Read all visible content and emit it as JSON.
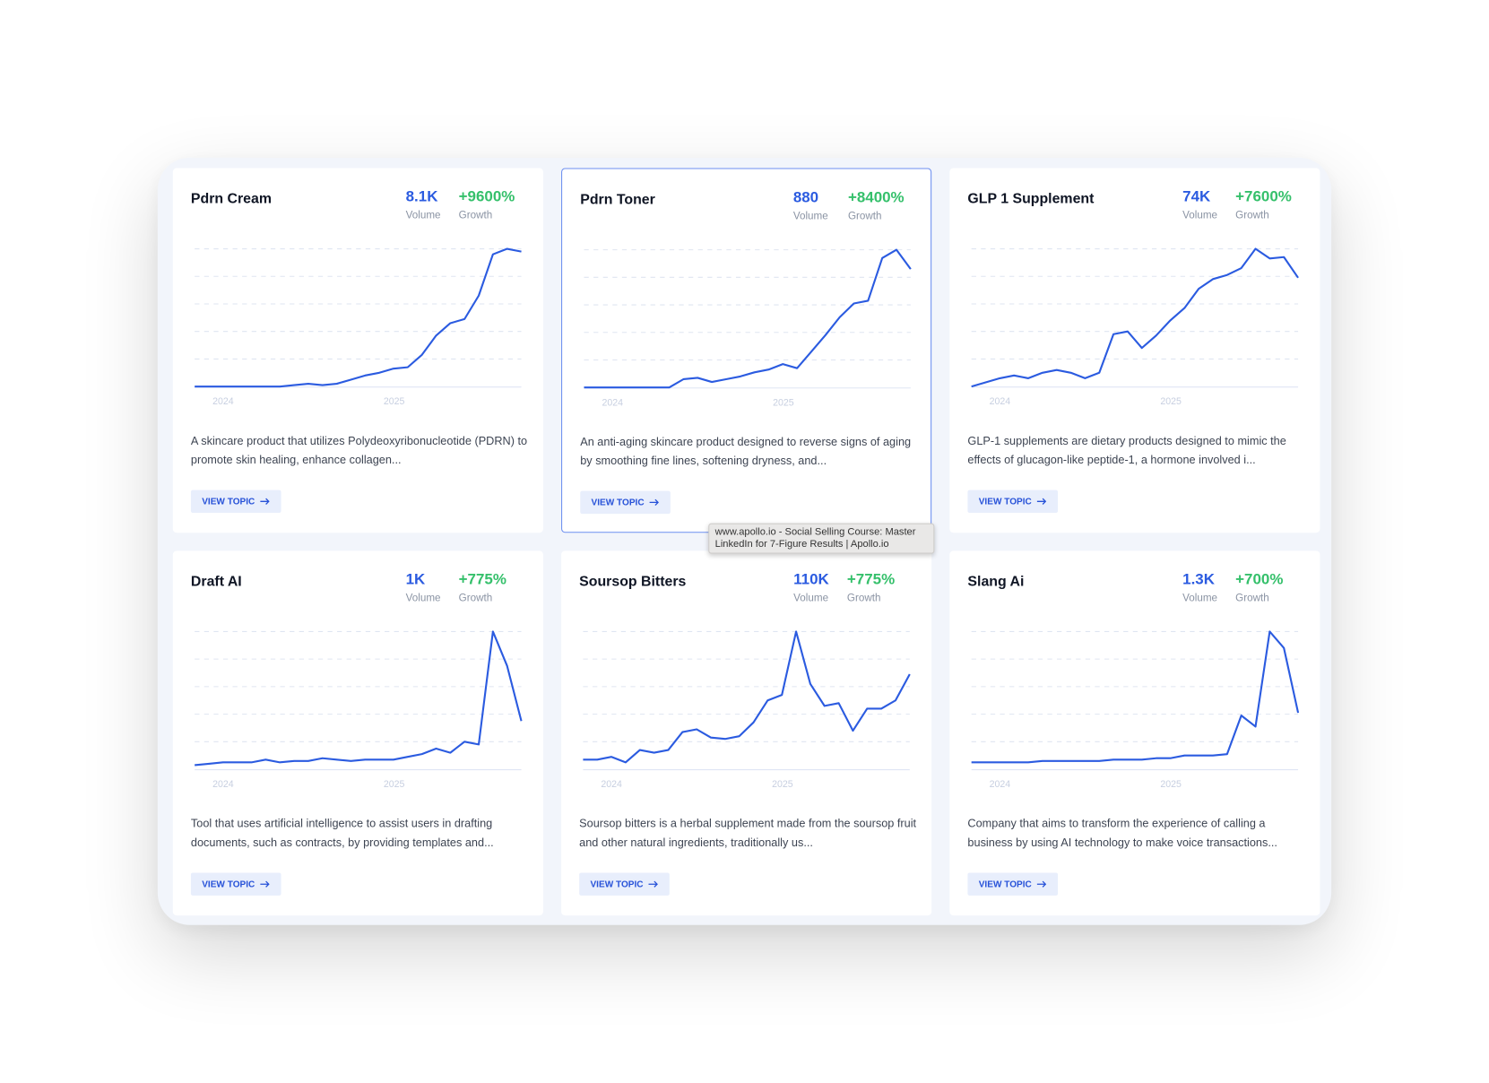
{
  "colors": {
    "line": "#2b5be0",
    "volume": "#2b5be0",
    "growth": "#35c06b"
  },
  "volume_label": "Volume",
  "growth_label": "Growth",
  "button_label": "VIEW TOPIC",
  "tooltip": "www.apollo.io - Social Selling Course: Master LinkedIn for 7-Figure Results | Apollo.io",
  "cards": [
    {
      "title": "Pdrn Cream",
      "volume": "8.1K",
      "growth": "+9600%",
      "description": "A skincare product that utilizes Polydeoxyribonucleotide (PDRN) to promote skin healing, enhance collagen..."
    },
    {
      "title": "Pdrn Toner",
      "volume": "880",
      "growth": "+8400%",
      "description": "An anti-aging skincare product designed to reverse signs of aging by smoothing fine lines, softening dryness, and..."
    },
    {
      "title": "GLP 1 Supplement",
      "volume": "74K",
      "growth": "+7600%",
      "description": "GLP-1 supplements are dietary products designed to mimic the effects of glucagon-like peptide-1, a hormone involved i..."
    },
    {
      "title": "Draft AI",
      "volume": "1K",
      "growth": "+775%",
      "description": "Tool that uses artificial intelligence to assist users in drafting documents, such as contracts, by providing templates and..."
    },
    {
      "title": "Soursop Bitters",
      "volume": "110K",
      "growth": "+775%",
      "description": "Soursop bitters is a herbal supplement made from the soursop fruit and other natural ingredients, traditionally us..."
    },
    {
      "title": "Slang Ai",
      "volume": "1.3K",
      "growth": "+700%",
      "description": "Company that aims to transform the experience of calling a business by using AI technology to make voice transactions..."
    }
  ],
  "chart_data": [
    {
      "type": "line",
      "title": "Pdrn Cream",
      "xticks": [
        "2024",
        "2025"
      ],
      "ylim": [
        0,
        100
      ],
      "values": [
        0,
        0,
        0,
        0,
        0,
        0,
        0,
        1,
        2,
        1,
        2,
        5,
        8,
        10,
        13,
        14,
        23,
        37,
        46,
        49,
        66,
        96,
        100,
        98
      ]
    },
    {
      "type": "line",
      "title": "Pdrn Toner",
      "xticks": [
        "2024",
        "2025"
      ],
      "ylim": [
        0,
        100
      ],
      "values": [
        0,
        0,
        0,
        0,
        0,
        0,
        0,
        6,
        7,
        4,
        6,
        8,
        11,
        13,
        17,
        14,
        26,
        38,
        51,
        61,
        63,
        94,
        100,
        86
      ]
    },
    {
      "type": "line",
      "title": "GLP 1 Supplement",
      "xticks": [
        "2024",
        "2025"
      ],
      "ylim": [
        0,
        100
      ],
      "values": [
        0,
        3,
        6,
        8,
        6,
        10,
        12,
        10,
        6,
        10,
        38,
        40,
        28,
        37,
        48,
        57,
        71,
        78,
        81,
        86,
        100,
        93,
        94,
        79
      ]
    },
    {
      "type": "line",
      "title": "Draft AI",
      "xticks": [
        "2024",
        "2025"
      ],
      "ylim": [
        0,
        100
      ],
      "values": [
        3,
        4,
        5,
        5,
        5,
        7,
        5,
        6,
        6,
        8,
        7,
        6,
        7,
        7,
        7,
        9,
        11,
        15,
        12,
        20,
        18,
        100,
        75,
        35
      ]
    },
    {
      "type": "line",
      "title": "Soursop Bitters",
      "xticks": [
        "2024",
        "2025"
      ],
      "ylim": [
        0,
        100
      ],
      "values": [
        7,
        7,
        9,
        5,
        14,
        12,
        14,
        27,
        29,
        23,
        22,
        24,
        34,
        50,
        54,
        100,
        62,
        46,
        48,
        28,
        44,
        44,
        50,
        69
      ]
    },
    {
      "type": "line",
      "title": "Slang Ai",
      "xticks": [
        "2024",
        "2025"
      ],
      "ylim": [
        0,
        100
      ],
      "values": [
        5,
        5,
        5,
        5,
        5,
        6,
        6,
        6,
        6,
        6,
        7,
        7,
        7,
        8,
        8,
        10,
        10,
        10,
        11,
        39,
        31,
        100,
        88,
        41
      ]
    }
  ]
}
